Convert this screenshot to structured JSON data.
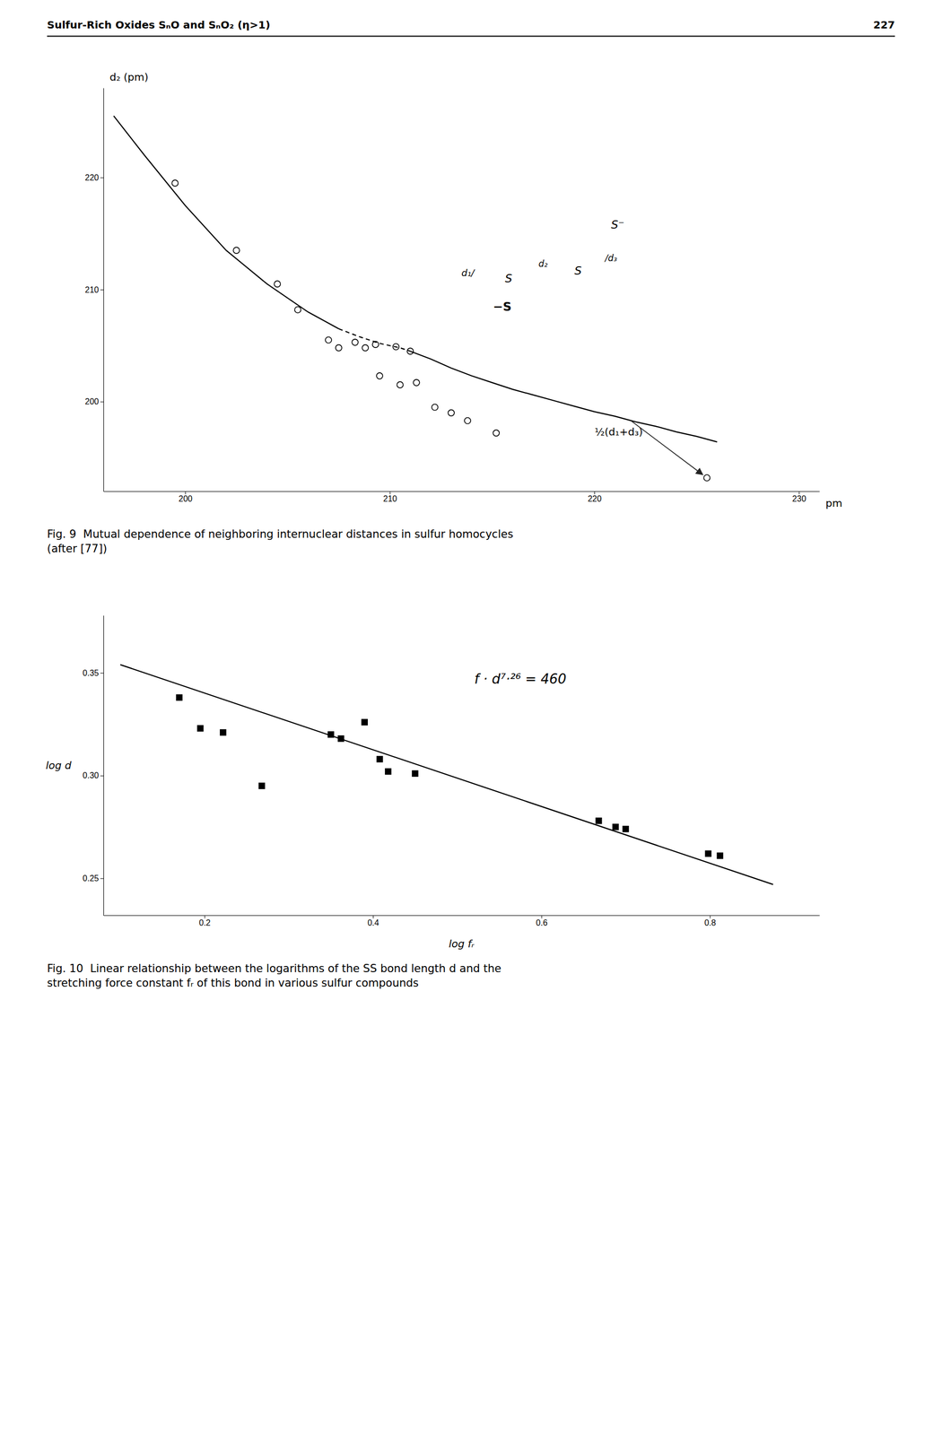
{
  "header_left": "Sulfur-Rich Oxides SₙO and SₙO₂ (η>1)",
  "header_right": "227",
  "chart_data": [
    {
      "type": "scatter",
      "title": "Fig. 9  Mutual dependence of neighboring internuclear distances in sulfur homocycles\n(after [77])",
      "x_label": "pm",
      "y_label": "d₂ (pm)",
      "xlim": [
        196,
        231
      ],
      "ylim": [
        192,
        228
      ],
      "xticks": [
        200,
        210,
        220,
        230
      ],
      "yticks": [
        200,
        210,
        220
      ],
      "series": [
        {
          "type": "scatter",
          "marker": "open-circle",
          "color": "black",
          "x": [
            199.5,
            202.5,
            204.5,
            205.5,
            207.0,
            207.5,
            208.3,
            208.8,
            209.3,
            210.3,
            211.0,
            209.5,
            210.5,
            211.3,
            212.2,
            213.0,
            213.8,
            215.2,
            225.5
          ],
          "values": [
            219.5,
            213.5,
            210.5,
            208.2,
            205.5,
            204.8,
            205.3,
            204.8,
            205.1,
            204.9,
            204.5,
            202.3,
            201.5,
            201.7,
            199.5,
            199.0,
            198.3,
            197.2,
            193.2
          ]
        },
        {
          "type": "line",
          "line_style": "solid",
          "color": "black",
          "x": [
            196.5,
            198.0,
            200.0,
            202.0,
            204.0,
            206.0,
            207.5
          ],
          "values": [
            225.5,
            222.0,
            217.5,
            213.5,
            210.5,
            208.0,
            206.5
          ]
        },
        {
          "type": "line",
          "line_style": "dashed",
          "color": "black",
          "x": [
            207.5,
            208.5,
            209.5,
            210.5,
            211.0
          ],
          "values": [
            206.5,
            205.8,
            205.2,
            204.8,
            204.5
          ]
        },
        {
          "type": "line",
          "line_style": "solid",
          "color": "black",
          "x": [
            211.0,
            212.0,
            213.0,
            214.0,
            215.0,
            216.0,
            217.0,
            218.0,
            219.0,
            220.0,
            221.0,
            222.0,
            223.0,
            224.0,
            225.0,
            226.0
          ],
          "values": [
            204.5,
            203.8,
            203.0,
            202.3,
            201.7,
            201.1,
            200.6,
            200.1,
            199.6,
            199.1,
            198.7,
            198.2,
            197.8,
            197.3,
            196.9,
            196.4
          ]
        }
      ],
      "annotations": [
        "S⁻",
        "d₁/",
        "S",
        "d₂",
        "S",
        "/d₃",
        "−S",
        "½(d₁+d₃)"
      ]
    },
    {
      "type": "scatter",
      "title": "Fig. 10  Linear relationship between the logarithms of the SS bond length d and the\nstretching force constant fᵣ of this bond in various sulfur compounds",
      "x_label": "log fᵣ",
      "y_label": "log d",
      "xlim": [
        0.08,
        0.93
      ],
      "ylim": [
        0.232,
        0.378
      ],
      "xticks": [
        0.2,
        0.4,
        0.6,
        0.8
      ],
      "yticks": [
        0.25,
        {
          "value": 0.3,
          "label": "0.30"
        },
        0.35
      ],
      "series": [
        {
          "type": "scatter",
          "marker": "square",
          "color": "black",
          "x": [
            0.17,
            0.195,
            0.222,
            0.268,
            0.35,
            0.362,
            0.39,
            0.408,
            0.418,
            0.45,
            0.668,
            0.688,
            0.7,
            0.798,
            0.812
          ],
          "values": [
            0.338,
            0.323,
            0.321,
            0.295,
            0.32,
            0.318,
            0.326,
            0.308,
            0.302,
            0.301,
            0.278,
            0.275,
            0.274,
            0.262,
            0.261
          ]
        },
        {
          "type": "line",
          "line_style": "solid",
          "color": "black",
          "x": [
            0.1,
            0.875
          ],
          "values": [
            0.354,
            0.247
          ]
        }
      ],
      "annotations": [
        "f · d⁷·²⁶ = 460"
      ]
    }
  ]
}
